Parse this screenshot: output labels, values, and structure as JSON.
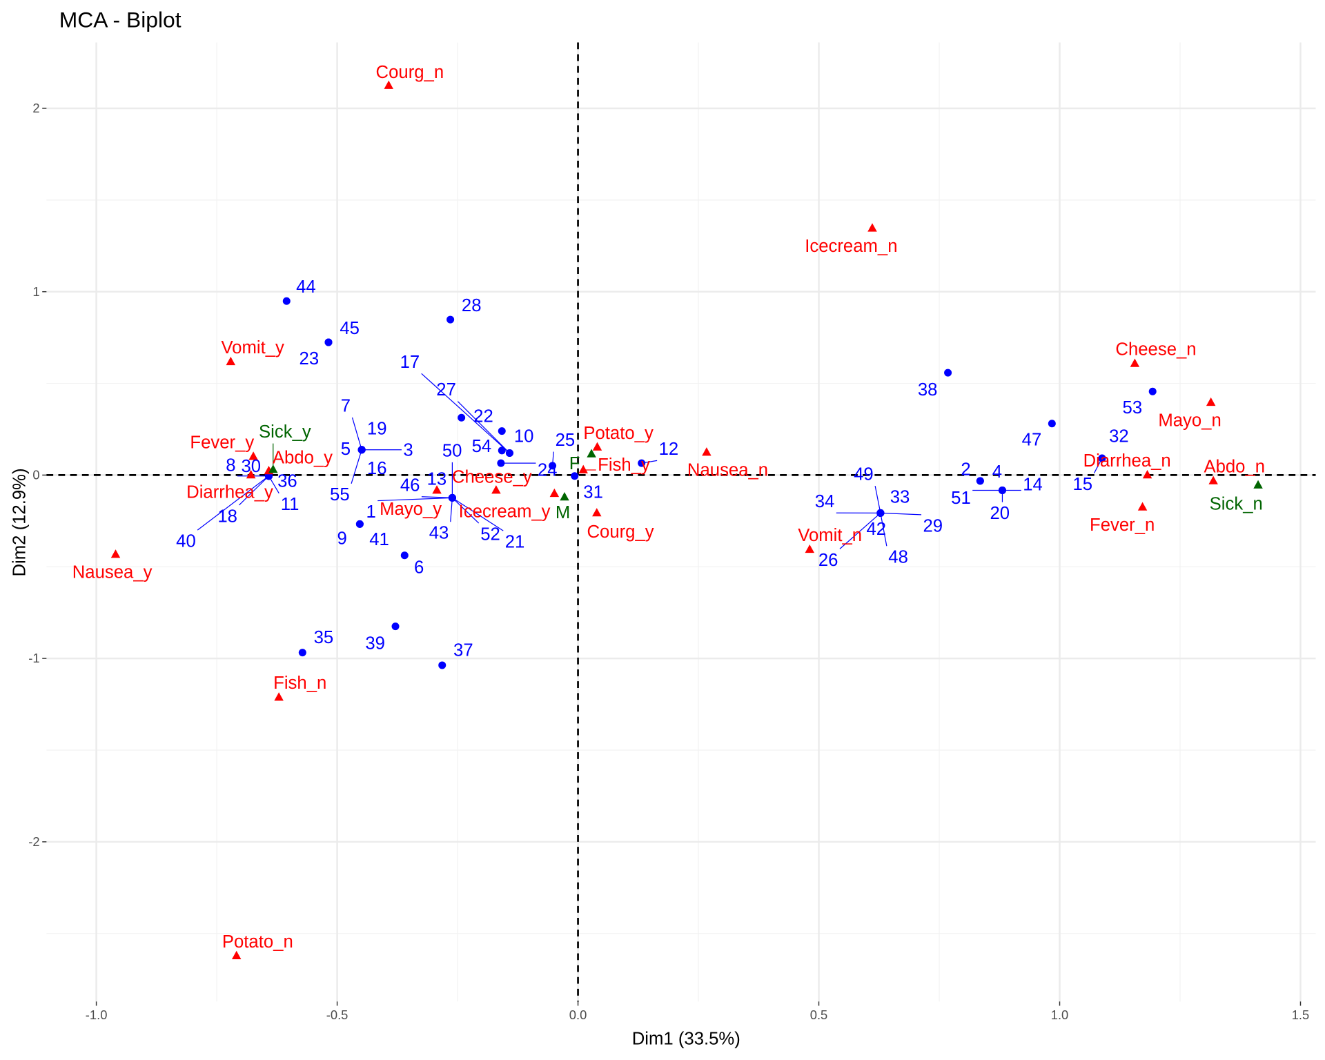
{
  "chart_data": {
    "type": "scatter",
    "title": "MCA - Biplot",
    "xlabel": "Dim1 (33.5%)",
    "ylabel": "Dim2 (12.9%)",
    "xlim": [
      -1.1,
      1.53
    ],
    "ylim": [
      -2.87,
      2.35
    ],
    "x_ticks": [
      -1.0,
      -0.5,
      0.0,
      0.5,
      1.0,
      1.5
    ],
    "x_tick_labels": [
      "-1.0",
      "-0.5",
      "0.0",
      "0.5",
      "1.0",
      "1.5"
    ],
    "y_ticks": [
      -2,
      -1,
      0,
      1,
      2
    ],
    "y_tick_labels": [
      "-2",
      "-1",
      "0",
      "1",
      "2"
    ],
    "grid": true,
    "reference_lines": {
      "x": 0,
      "y": 0,
      "style": "dashed"
    },
    "colors": {
      "individuals": "#0000ff",
      "variables": "#ff0000",
      "supplementary": "#006400"
    },
    "individuals": [
      {
        "id": "44",
        "x": -0.605,
        "y": 0.949
      },
      {
        "id": "28",
        "x": -0.265,
        "y": 0.848
      },
      {
        "id": "45",
        "x": -0.518,
        "y": 0.724
      },
      {
        "id": "23",
        "x": -0.518,
        "y": 0.724
      },
      {
        "id": "38",
        "x": 0.768,
        "y": 0.558
      },
      {
        "id": "53",
        "x": 1.193,
        "y": 0.456
      },
      {
        "id": "47",
        "x": 0.984,
        "y": 0.281
      },
      {
        "id": "32",
        "x": 1.088,
        "y": 0.092
      },
      {
        "id": "15",
        "x": 1.088,
        "y": 0.092
      },
      {
        "id": "2",
        "x": 0.835,
        "y": -0.032
      },
      {
        "id": "4",
        "x": 0.835,
        "y": -0.032
      },
      {
        "id": "14",
        "x": 0.881,
        "y": -0.083
      },
      {
        "id": "20",
        "x": 0.881,
        "y": -0.083
      },
      {
        "id": "51",
        "x": 0.881,
        "y": -0.083
      },
      {
        "id": "49",
        "x": 0.628,
        "y": -0.207
      },
      {
        "id": "33",
        "x": 0.628,
        "y": -0.207
      },
      {
        "id": "34",
        "x": 0.628,
        "y": -0.207
      },
      {
        "id": "29",
        "x": 0.628,
        "y": -0.207
      },
      {
        "id": "42",
        "x": 0.628,
        "y": -0.207
      },
      {
        "id": "26",
        "x": 0.628,
        "y": -0.207
      },
      {
        "id": "48",
        "x": 0.628,
        "y": -0.207
      },
      {
        "id": "12",
        "x": 0.132,
        "y": 0.065
      },
      {
        "id": "25",
        "x": -0.053,
        "y": 0.051
      },
      {
        "id": "31",
        "x": -0.007,
        "y": -0.005
      },
      {
        "id": "10",
        "x": -0.158,
        "y": 0.24
      },
      {
        "id": "22",
        "x": -0.242,
        "y": 0.313
      },
      {
        "id": "54",
        "x": -0.158,
        "y": 0.134
      },
      {
        "id": "17",
        "x": -0.142,
        "y": 0.12
      },
      {
        "id": "27",
        "x": -0.142,
        "y": 0.12
      },
      {
        "id": "24",
        "x": -0.16,
        "y": 0.065
      },
      {
        "id": "3",
        "x": -0.449,
        "y": 0.138
      },
      {
        "id": "5",
        "x": -0.449,
        "y": 0.138
      },
      {
        "id": "7",
        "x": -0.449,
        "y": 0.138
      },
      {
        "id": "19",
        "x": -0.449,
        "y": 0.138
      },
      {
        "id": "16",
        "x": -0.449,
        "y": 0.138
      },
      {
        "id": "55",
        "x": -0.449,
        "y": 0.138
      },
      {
        "id": "30",
        "x": -0.642,
        "y": -0.005
      },
      {
        "id": "36",
        "x": -0.642,
        "y": -0.005
      },
      {
        "id": "8",
        "x": -0.642,
        "y": -0.005
      },
      {
        "id": "11",
        "x": -0.642,
        "y": -0.005
      },
      {
        "id": "18",
        "x": -0.642,
        "y": -0.005
      },
      {
        "id": "40",
        "x": -0.642,
        "y": -0.005
      },
      {
        "id": "9",
        "x": -0.453,
        "y": -0.267
      },
      {
        "id": "41",
        "x": -0.453,
        "y": -0.267
      },
      {
        "id": "6",
        "x": -0.36,
        "y": -0.438
      },
      {
        "id": "13",
        "x": -0.261,
        "y": -0.124
      },
      {
        "id": "1",
        "x": -0.261,
        "y": -0.124
      },
      {
        "id": "46",
        "x": -0.261,
        "y": -0.124
      },
      {
        "id": "50",
        "x": -0.261,
        "y": -0.124
      },
      {
        "id": "52",
        "x": -0.261,
        "y": -0.124
      },
      {
        "id": "43",
        "x": -0.261,
        "y": -0.124
      },
      {
        "id": "21",
        "x": -0.261,
        "y": -0.124
      },
      {
        "id": "35",
        "x": -0.572,
        "y": -0.968
      },
      {
        "id": "39",
        "x": -0.379,
        "y": -0.825
      },
      {
        "id": "37",
        "x": -0.282,
        "y": -1.037
      }
    ],
    "categories": [
      {
        "id": "Courg_n",
        "x": -0.393,
        "y": 2.124
      },
      {
        "id": "Icecream_n",
        "x": 0.611,
        "y": 1.346
      },
      {
        "id": "Vomit_y",
        "x": -0.721,
        "y": 0.618
      },
      {
        "id": "Cheese_n",
        "x": 1.156,
        "y": 0.608
      },
      {
        "id": "Mayo_n",
        "x": 1.314,
        "y": 0.396
      },
      {
        "id": "Fever_y",
        "x": -0.674,
        "y": 0.101
      },
      {
        "id": "Abdo_y",
        "x": -0.642,
        "y": 0.023
      },
      {
        "id": "Diarrhea_y",
        "x": -0.679,
        "y": 0.0
      },
      {
        "id": "Potato_y",
        "x": 0.04,
        "y": 0.152
      },
      {
        "id": "Fish_y",
        "x": 0.011,
        "y": 0.028
      },
      {
        "id": "Nausea_n",
        "x": 0.267,
        "y": 0.124
      },
      {
        "id": "Cheese_y",
        "x": -0.17,
        "y": -0.083
      },
      {
        "id": "Mayo_y",
        "x": -0.293,
        "y": -0.083
      },
      {
        "id": "Icecream_y",
        "x": -0.049,
        "y": -0.101
      },
      {
        "id": "Courg_y",
        "x": 0.039,
        "y": -0.207
      },
      {
        "id": "Vomit_n",
        "x": 0.481,
        "y": -0.406
      },
      {
        "id": "Nausea_y",
        "x": -0.96,
        "y": -0.433
      },
      {
        "id": "Fish_n",
        "x": -0.621,
        "y": -1.212
      },
      {
        "id": "Potato_n",
        "x": -0.709,
        "y": -2.622
      },
      {
        "id": "Diarrhea_n",
        "x": 1.182,
        "y": 0.0
      },
      {
        "id": "Abdo_n",
        "x": 1.319,
        "y": -0.032
      },
      {
        "id": "Fever_n",
        "x": 1.172,
        "y": -0.175
      }
    ],
    "supplementary": [
      {
        "id": "F",
        "x": 0.028,
        "y": 0.115
      },
      {
        "id": "M",
        "x": -0.028,
        "y": -0.12
      },
      {
        "id": "Sick_y",
        "x": -0.633,
        "y": 0.03
      },
      {
        "id": "Sick_n",
        "x": 1.412,
        "y": -0.055
      }
    ]
  }
}
